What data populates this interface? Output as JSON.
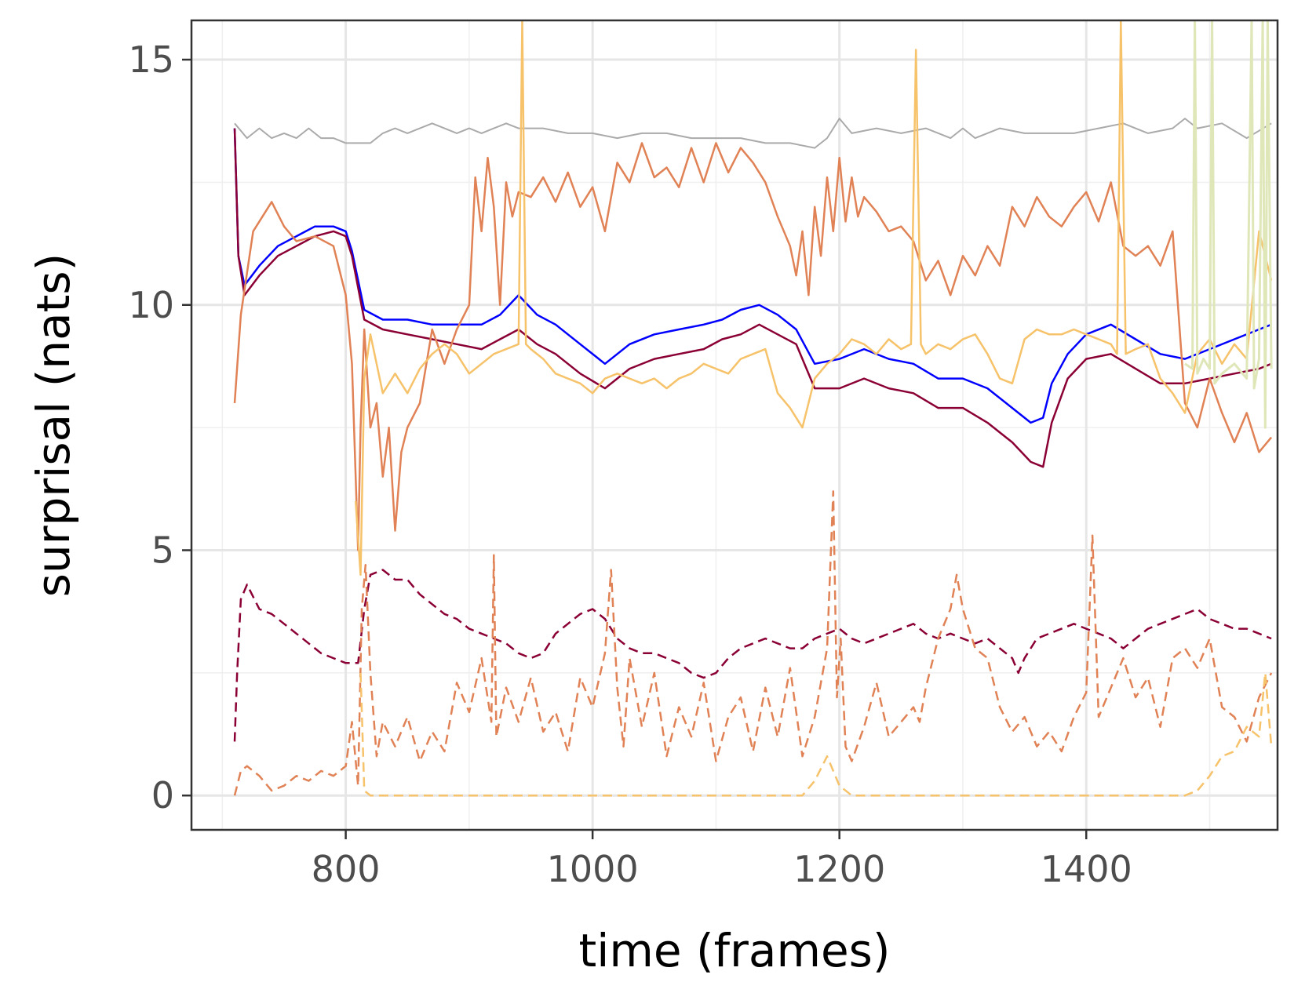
{
  "chart_data": {
    "type": "line",
    "xlabel": "time (frames)",
    "ylabel": "surprisal (nats)",
    "xlim": [
      675,
      1555
    ],
    "ylim": [
      -0.7,
      15.8
    ],
    "x_ticks": [
      800,
      1000,
      1200,
      1400
    ],
    "y_ticks": [
      0,
      5,
      10,
      15
    ],
    "grid": true,
    "legend": "none",
    "series": [
      {
        "color": "#aaaaaa",
        "style": "solid",
        "width": 2,
        "x": [
          710,
          720,
          730,
          740,
          750,
          760,
          770,
          780,
          790,
          800,
          810,
          820,
          830,
          840,
          850,
          860,
          870,
          880,
          890,
          900,
          910,
          920,
          930,
          940,
          960,
          980,
          1000,
          1020,
          1040,
          1060,
          1080,
          1100,
          1120,
          1140,
          1160,
          1180,
          1190,
          1200,
          1210,
          1230,
          1250,
          1270,
          1290,
          1300,
          1310,
          1330,
          1350,
          1370,
          1390,
          1410,
          1430,
          1450,
          1470,
          1480,
          1490,
          1510,
          1530,
          1550
        ],
        "y": [
          13.7,
          13.4,
          13.6,
          13.4,
          13.5,
          13.4,
          13.6,
          13.4,
          13.4,
          13.3,
          13.3,
          13.3,
          13.5,
          13.6,
          13.5,
          13.6,
          13.7,
          13.6,
          13.5,
          13.6,
          13.5,
          13.6,
          13.7,
          13.6,
          13.6,
          13.5,
          13.5,
          13.4,
          13.5,
          13.5,
          13.4,
          13.4,
          13.4,
          13.3,
          13.3,
          13.2,
          13.4,
          13.8,
          13.5,
          13.6,
          13.5,
          13.6,
          13.4,
          13.6,
          13.4,
          13.6,
          13.5,
          13.5,
          13.5,
          13.6,
          13.7,
          13.5,
          13.6,
          13.8,
          13.6,
          13.7,
          13.4,
          13.7
        ]
      },
      {
        "color": "#0000ff",
        "style": "solid",
        "width": 2.5,
        "x": [
          710,
          713,
          718,
          730,
          745,
          760,
          775,
          790,
          800,
          805,
          815,
          830,
          850,
          870,
          890,
          910,
          925,
          940,
          955,
          970,
          990,
          1010,
          1030,
          1050,
          1070,
          1090,
          1105,
          1120,
          1135,
          1150,
          1165,
          1180,
          1200,
          1220,
          1240,
          1260,
          1280,
          1300,
          1320,
          1340,
          1355,
          1365,
          1372,
          1385,
          1400,
          1420,
          1440,
          1460,
          1480,
          1500,
          1520,
          1540,
          1550
        ],
        "y": [
          13.6,
          11.0,
          10.4,
          10.8,
          11.2,
          11.4,
          11.6,
          11.6,
          11.5,
          11.1,
          9.9,
          9.7,
          9.7,
          9.6,
          9.6,
          9.6,
          9.8,
          10.2,
          9.8,
          9.6,
          9.2,
          8.8,
          9.2,
          9.4,
          9.5,
          9.6,
          9.7,
          9.9,
          10.0,
          9.8,
          9.5,
          8.8,
          8.9,
          9.1,
          8.9,
          8.8,
          8.5,
          8.5,
          8.3,
          7.9,
          7.6,
          7.7,
          8.4,
          9.0,
          9.4,
          9.6,
          9.3,
          9.0,
          8.9,
          9.1,
          9.3,
          9.5,
          9.6
        ]
      },
      {
        "color": "#8b0034",
        "style": "solid",
        "width": 2.5,
        "x": [
          710,
          713,
          718,
          730,
          745,
          760,
          775,
          790,
          800,
          805,
          815,
          830,
          850,
          870,
          890,
          910,
          925,
          940,
          955,
          970,
          990,
          1010,
          1030,
          1050,
          1070,
          1090,
          1105,
          1120,
          1135,
          1150,
          1165,
          1180,
          1200,
          1220,
          1240,
          1260,
          1280,
          1300,
          1320,
          1340,
          1355,
          1365,
          1372,
          1385,
          1400,
          1420,
          1440,
          1460,
          1480,
          1500,
          1520,
          1540,
          1550
        ],
        "y": [
          13.6,
          11.0,
          10.2,
          10.6,
          11.0,
          11.2,
          11.4,
          11.5,
          11.4,
          11.0,
          9.7,
          9.5,
          9.4,
          9.3,
          9.2,
          9.1,
          9.3,
          9.5,
          9.2,
          9.0,
          8.6,
          8.3,
          8.7,
          8.9,
          9.0,
          9.1,
          9.3,
          9.4,
          9.6,
          9.4,
          9.2,
          8.3,
          8.3,
          8.5,
          8.3,
          8.2,
          7.9,
          7.9,
          7.6,
          7.2,
          6.8,
          6.7,
          7.6,
          8.5,
          8.9,
          9.0,
          8.7,
          8.4,
          8.4,
          8.5,
          8.6,
          8.7,
          8.8
        ]
      },
      {
        "color": "#e08255",
        "style": "solid",
        "width": 2.5,
        "x": [
          710,
          715,
          725,
          740,
          750,
          760,
          775,
          790,
          800,
          805,
          810,
          812,
          815,
          820,
          825,
          830,
          835,
          840,
          845,
          850,
          860,
          870,
          880,
          890,
          900,
          905,
          910,
          915,
          920,
          925,
          930,
          935,
          940,
          950,
          960,
          970,
          980,
          990,
          1000,
          1010,
          1020,
          1030,
          1040,
          1050,
          1060,
          1070,
          1080,
          1090,
          1100,
          1110,
          1120,
          1130,
          1140,
          1150,
          1160,
          1165,
          1170,
          1175,
          1180,
          1185,
          1190,
          1195,
          1200,
          1205,
          1210,
          1215,
          1220,
          1230,
          1240,
          1250,
          1260,
          1270,
          1280,
          1290,
          1300,
          1310,
          1320,
          1330,
          1340,
          1350,
          1360,
          1370,
          1380,
          1390,
          1400,
          1410,
          1420,
          1430,
          1440,
          1450,
          1460,
          1470,
          1480,
          1490,
          1500,
          1510,
          1520,
          1530,
          1540,
          1550
        ],
        "y": [
          8.0,
          9.8,
          11.5,
          12.1,
          11.6,
          11.3,
          11.4,
          11.2,
          10.2,
          8.8,
          5.0,
          7.5,
          9.5,
          7.5,
          8.0,
          6.5,
          7.5,
          5.4,
          7.0,
          7.5,
          8.0,
          9.5,
          8.8,
          9.5,
          10.0,
          12.6,
          11.5,
          13.0,
          12.0,
          10.0,
          12.5,
          11.8,
          12.3,
          12.2,
          12.6,
          12.1,
          12.7,
          12.0,
          12.4,
          11.5,
          12.9,
          12.5,
          13.3,
          12.6,
          12.8,
          12.4,
          13.2,
          12.5,
          13.3,
          12.7,
          13.2,
          12.9,
          12.5,
          11.8,
          11.2,
          10.6,
          11.5,
          10.2,
          12.0,
          11.0,
          12.6,
          11.5,
          13.0,
          11.7,
          12.6,
          11.8,
          12.2,
          11.9,
          11.5,
          11.6,
          11.3,
          10.5,
          10.9,
          10.2,
          11.0,
          10.6,
          11.2,
          10.8,
          12.0,
          11.6,
          12.2,
          11.8,
          11.6,
          12.0,
          12.3,
          11.7,
          12.5,
          11.2,
          11.0,
          11.2,
          10.8,
          11.5,
          8.0,
          7.5,
          8.5,
          7.8,
          7.2,
          7.8,
          7.0,
          7.3
        ]
      },
      {
        "color": "#f6c26a",
        "style": "solid",
        "width": 2.5,
        "x": [
          808,
          812,
          815,
          820,
          830,
          840,
          850,
          860,
          870,
          880,
          890,
          900,
          910,
          920,
          930,
          940,
          943,
          946,
          950,
          960,
          970,
          980,
          990,
          1000,
          1010,
          1020,
          1030,
          1040,
          1050,
          1060,
          1070,
          1080,
          1090,
          1100,
          1110,
          1120,
          1130,
          1140,
          1150,
          1160,
          1170,
          1180,
          1190,
          1200,
          1210,
          1220,
          1230,
          1240,
          1250,
          1258,
          1262,
          1266,
          1270,
          1280,
          1290,
          1300,
          1310,
          1320,
          1330,
          1340,
          1350,
          1360,
          1370,
          1380,
          1390,
          1400,
          1410,
          1420,
          1425,
          1428,
          1432,
          1440,
          1450,
          1460,
          1470,
          1480,
          1490,
          1500,
          1510,
          1520,
          1530,
          1540,
          1550
        ],
        "y": [
          6.0,
          4.5,
          8.5,
          9.4,
          8.2,
          8.6,
          8.2,
          8.7,
          9.0,
          9.2,
          9.0,
          8.6,
          8.8,
          9.0,
          9.1,
          9.2,
          15.8,
          9.2,
          9.1,
          8.9,
          8.6,
          8.5,
          8.4,
          8.2,
          8.5,
          8.6,
          8.5,
          8.4,
          8.5,
          8.3,
          8.5,
          8.6,
          8.8,
          8.7,
          8.6,
          8.9,
          9.0,
          9.1,
          8.2,
          7.9,
          7.5,
          8.5,
          8.8,
          9.0,
          9.3,
          9.2,
          9.0,
          9.3,
          9.1,
          9.2,
          15.2,
          9.2,
          9.0,
          9.2,
          9.1,
          9.3,
          9.4,
          9.0,
          8.5,
          8.4,
          9.3,
          9.5,
          9.4,
          9.4,
          9.5,
          9.4,
          9.3,
          9.2,
          9.0,
          15.8,
          9.0,
          9.1,
          9.2,
          8.5,
          8.2,
          7.8,
          9.0,
          9.3,
          8.8,
          9.2,
          8.9,
          11.5,
          10.5
        ]
      },
      {
        "color": "#dfe6b8",
        "style": "solid",
        "width": 3,
        "x": [
          1480,
          1486,
          1488,
          1490,
          1495,
          1500,
          1502,
          1504,
          1510,
          1520,
          1530,
          1534,
          1536,
          1538,
          1540,
          1543,
          1545,
          1547,
          1550
        ],
        "y": [
          8.8,
          8.7,
          15.8,
          8.6,
          8.9,
          8.7,
          15.8,
          8.4,
          8.6,
          8.8,
          8.5,
          15.8,
          8.3,
          8.6,
          8.9,
          15.8,
          7.5,
          15.8,
          8.7
        ]
      },
      {
        "color": "#8b0034",
        "style": "dashed",
        "width": 2.5,
        "x": [
          710,
          712,
          715,
          720,
          730,
          740,
          750,
          760,
          770,
          780,
          790,
          800,
          810,
          815,
          820,
          830,
          840,
          850,
          860,
          870,
          880,
          890,
          900,
          910,
          920,
          930,
          940,
          950,
          960,
          970,
          980,
          990,
          1000,
          1010,
          1020,
          1030,
          1040,
          1050,
          1060,
          1070,
          1080,
          1090,
          1100,
          1110,
          1120,
          1130,
          1140,
          1150,
          1160,
          1170,
          1180,
          1190,
          1200,
          1210,
          1220,
          1230,
          1240,
          1250,
          1260,
          1270,
          1280,
          1290,
          1300,
          1310,
          1320,
          1330,
          1340,
          1345,
          1350,
          1360,
          1370,
          1380,
          1390,
          1400,
          1410,
          1420,
          1430,
          1440,
          1450,
          1460,
          1470,
          1480,
          1490,
          1500,
          1510,
          1520,
          1530,
          1540,
          1550
        ],
        "y": [
          1.1,
          2.5,
          4.0,
          4.3,
          3.8,
          3.7,
          3.5,
          3.3,
          3.1,
          2.9,
          2.8,
          2.7,
          2.7,
          3.8,
          4.5,
          4.6,
          4.4,
          4.4,
          4.1,
          3.9,
          3.7,
          3.6,
          3.4,
          3.3,
          3.2,
          3.1,
          2.9,
          2.8,
          2.9,
          3.3,
          3.5,
          3.7,
          3.8,
          3.6,
          3.2,
          3.0,
          2.9,
          2.9,
          2.8,
          2.7,
          2.5,
          2.4,
          2.5,
          2.8,
          3.0,
          3.1,
          3.2,
          3.1,
          3.0,
          3.0,
          3.2,
          3.3,
          3.4,
          3.2,
          3.1,
          3.2,
          3.3,
          3.4,
          3.5,
          3.3,
          3.2,
          3.3,
          3.2,
          3.1,
          3.2,
          3.0,
          2.8,
          2.5,
          2.8,
          3.2,
          3.3,
          3.4,
          3.5,
          3.4,
          3.3,
          3.2,
          3.0,
          3.2,
          3.4,
          3.5,
          3.6,
          3.7,
          3.8,
          3.6,
          3.5,
          3.4,
          3.4,
          3.3,
          3.2
        ]
      },
      {
        "color": "#e08255",
        "style": "dashed",
        "width": 2.5,
        "x": [
          710,
          715,
          720,
          730,
          740,
          750,
          760,
          770,
          780,
          790,
          800,
          805,
          810,
          813,
          816,
          820,
          825,
          830,
          840,
          850,
          860,
          870,
          880,
          890,
          900,
          910,
          918,
          920,
          922,
          930,
          940,
          950,
          960,
          970,
          980,
          990,
          1000,
          1010,
          1015,
          1020,
          1025,
          1030,
          1040,
          1050,
          1060,
          1070,
          1080,
          1090,
          1100,
          1110,
          1120,
          1130,
          1140,
          1150,
          1160,
          1170,
          1180,
          1190,
          1195,
          1198,
          1201,
          1205,
          1210,
          1220,
          1230,
          1240,
          1250,
          1260,
          1265,
          1270,
          1280,
          1290,
          1295,
          1300,
          1310,
          1320,
          1330,
          1340,
          1350,
          1360,
          1370,
          1380,
          1390,
          1400,
          1405,
          1410,
          1420,
          1430,
          1440,
          1450,
          1460,
          1470,
          1480,
          1490,
          1500,
          1510,
          1520,
          1530,
          1540,
          1550
        ],
        "y": [
          0.0,
          0.5,
          0.6,
          0.4,
          0.1,
          0.2,
          0.4,
          0.3,
          0.5,
          0.4,
          0.6,
          1.5,
          0.2,
          3.8,
          4.7,
          2.5,
          0.8,
          1.5,
          1.0,
          1.6,
          0.7,
          1.3,
          0.9,
          2.3,
          1.7,
          2.8,
          1.5,
          4.9,
          1.2,
          2.2,
          1.5,
          2.4,
          1.3,
          1.7,
          0.9,
          2.4,
          1.8,
          2.9,
          4.6,
          2.2,
          1.0,
          2.8,
          1.4,
          2.5,
          0.8,
          1.8,
          1.2,
          2.3,
          0.7,
          1.6,
          2.0,
          0.9,
          2.2,
          1.2,
          2.6,
          0.8,
          1.6,
          3.0,
          6.2,
          2.0,
          3.2,
          1.0,
          0.7,
          1.4,
          2.3,
          1.2,
          1.5,
          1.8,
          1.5,
          2.2,
          3.2,
          3.8,
          4.5,
          3.8,
          3.0,
          2.8,
          1.8,
          1.3,
          1.6,
          1.0,
          1.3,
          0.9,
          1.6,
          2.1,
          5.3,
          1.6,
          2.2,
          2.8,
          2.0,
          2.4,
          1.4,
          2.8,
          3.0,
          2.6,
          3.2,
          1.8,
          1.6,
          1.1,
          2.0,
          2.5
        ]
      },
      {
        "color": "#f6c26a",
        "style": "dashed",
        "width": 2.5,
        "x": [
          812,
          815,
          820,
          840,
          860,
          880,
          900,
          950,
          1000,
          1050,
          1100,
          1150,
          1170,
          1180,
          1190,
          1200,
          1210,
          1250,
          1300,
          1350,
          1400,
          1450,
          1480,
          1490,
          1500,
          1510,
          1520,
          1530,
          1540,
          1545,
          1550
        ],
        "y": [
          2.5,
          0.1,
          0.0,
          0.0,
          0.0,
          0.0,
          0.0,
          0.0,
          0.0,
          0.0,
          0.0,
          0.0,
          0.0,
          0.3,
          0.8,
          0.2,
          0.0,
          0.0,
          0.0,
          0.0,
          0.0,
          0.0,
          0.0,
          0.1,
          0.4,
          0.8,
          0.9,
          1.4,
          1.2,
          2.5,
          1.0
        ]
      }
    ]
  }
}
